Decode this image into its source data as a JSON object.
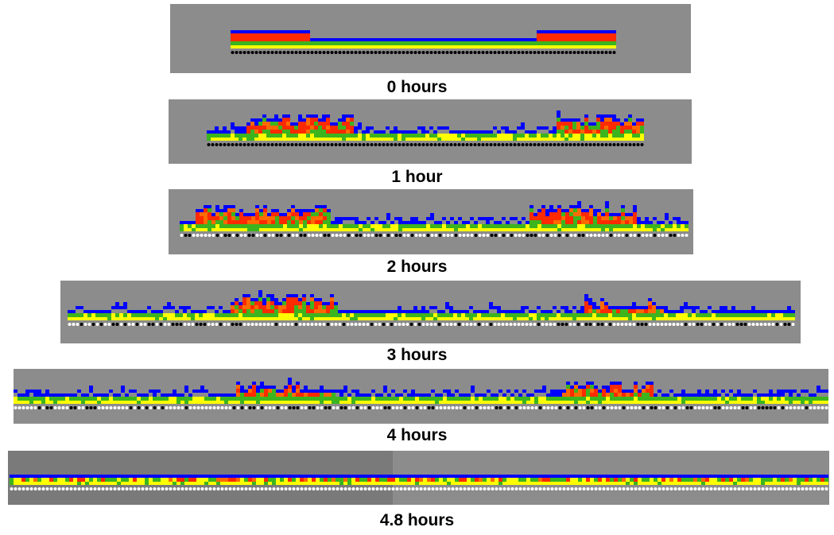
{
  "colors": {
    "background": "#8c8c8c",
    "blue": "#0000ff",
    "red": "#ff2a00",
    "orange": "#ff6a00",
    "green": "#3cb41e",
    "yellow": "#ffff00",
    "bead_black": "#000000",
    "bead_white": "#ffffff"
  },
  "panels": [
    {
      "id": "p0",
      "label": "0 hours",
      "profile": "flat"
    },
    {
      "id": "p1",
      "label": "1 hour",
      "profile": "rough"
    },
    {
      "id": "p2",
      "label": "2 hours",
      "profile": "rough"
    },
    {
      "id": "p3",
      "label": "3 hours",
      "profile": "rough"
    },
    {
      "id": "p4",
      "label": "4 hours",
      "profile": "rough"
    },
    {
      "id": "p5",
      "label": "4.8 hours",
      "profile": "thin"
    }
  ]
}
